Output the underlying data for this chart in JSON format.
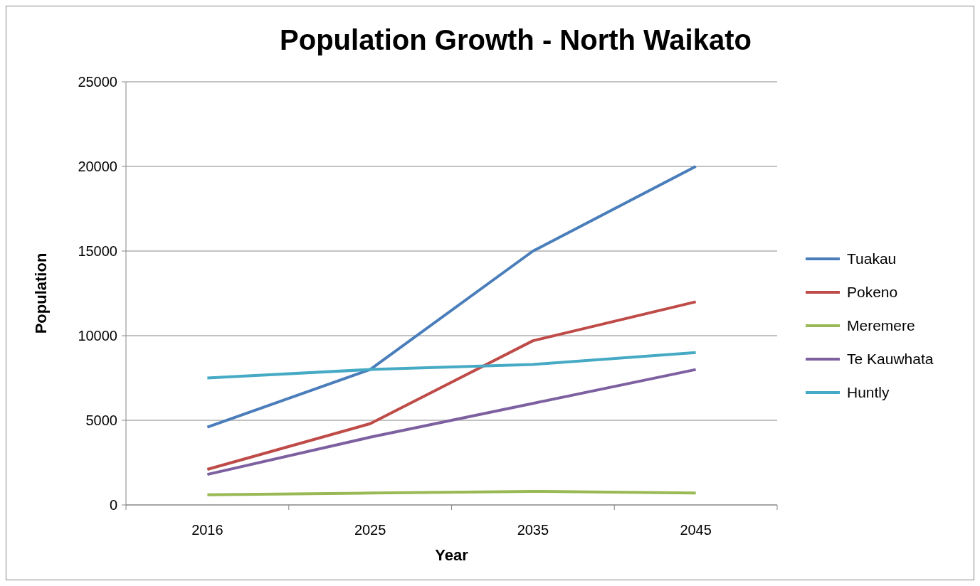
{
  "chart_data": {
    "type": "line",
    "title": "Population Growth - North Waikato",
    "xlabel": "Year",
    "ylabel": "Population",
    "categories": [
      "2016",
      "2025",
      "2035",
      "2045"
    ],
    "series": [
      {
        "name": "Tuakau",
        "color": "#4a7ebb",
        "values": [
          4600,
          8000,
          15000,
          20000
        ]
      },
      {
        "name": "Pokeno",
        "color": "#be4b48",
        "values": [
          2100,
          4800,
          9700,
          12000
        ]
      },
      {
        "name": "Meremere",
        "color": "#98b954",
        "values": [
          600,
          700,
          800,
          700
        ]
      },
      {
        "name": "Te Kauwhata",
        "color": "#7d60a0",
        "values": [
          1800,
          4000,
          6000,
          8000
        ]
      },
      {
        "name": "Huntly",
        "color": "#46aac5",
        "values": [
          7500,
          8000,
          8300,
          9000
        ]
      }
    ],
    "ylim": [
      0,
      25000
    ],
    "yticks": [
      0,
      5000,
      10000,
      15000,
      20000,
      25000
    ],
    "grid": "y",
    "legend": "right",
    "marker": "none",
    "line_style": "solid"
  }
}
